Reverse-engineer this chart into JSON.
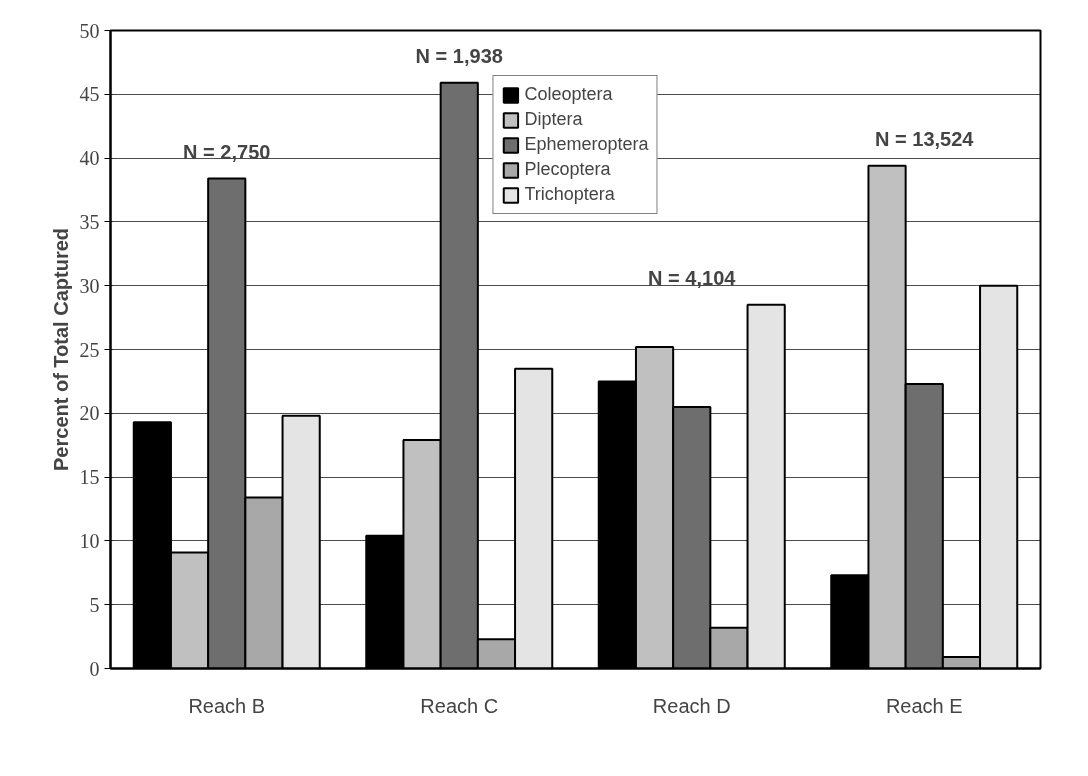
{
  "chart_data": {
    "type": "bar",
    "ylabel": "Percent of Total Captured",
    "categories": [
      "Reach B",
      "Reach C",
      "Reach D",
      "Reach E"
    ],
    "series": [
      {
        "name": "Coleoptera",
        "color": "#000000",
        "values": [
          19.3,
          10.4,
          22.5,
          7.3
        ]
      },
      {
        "name": "Diptera",
        "color": "#c0c0c0",
        "values": [
          9.1,
          17.9,
          25.2,
          39.4
        ]
      },
      {
        "name": "Ephemeroptera",
        "color": "#6e6e6e",
        "values": [
          38.4,
          45.9,
          20.5,
          22.3
        ]
      },
      {
        "name": "Plecoptera",
        "color": "#a8a8a8",
        "values": [
          13.4,
          2.3,
          3.2,
          0.9
        ]
      },
      {
        "name": "Trichoptera",
        "color": "#e4e4e4",
        "values": [
          19.8,
          23.5,
          28.5,
          30.0
        ]
      }
    ],
    "ylim": [
      0,
      50
    ],
    "yticks": [
      0,
      5,
      10,
      15,
      20,
      25,
      30,
      35,
      40,
      45,
      50
    ],
    "annotations": [
      "N = 2,750",
      "N = 1,938",
      "N = 4,104",
      "N = 13,524"
    ],
    "grid": "y",
    "legend": "top"
  }
}
